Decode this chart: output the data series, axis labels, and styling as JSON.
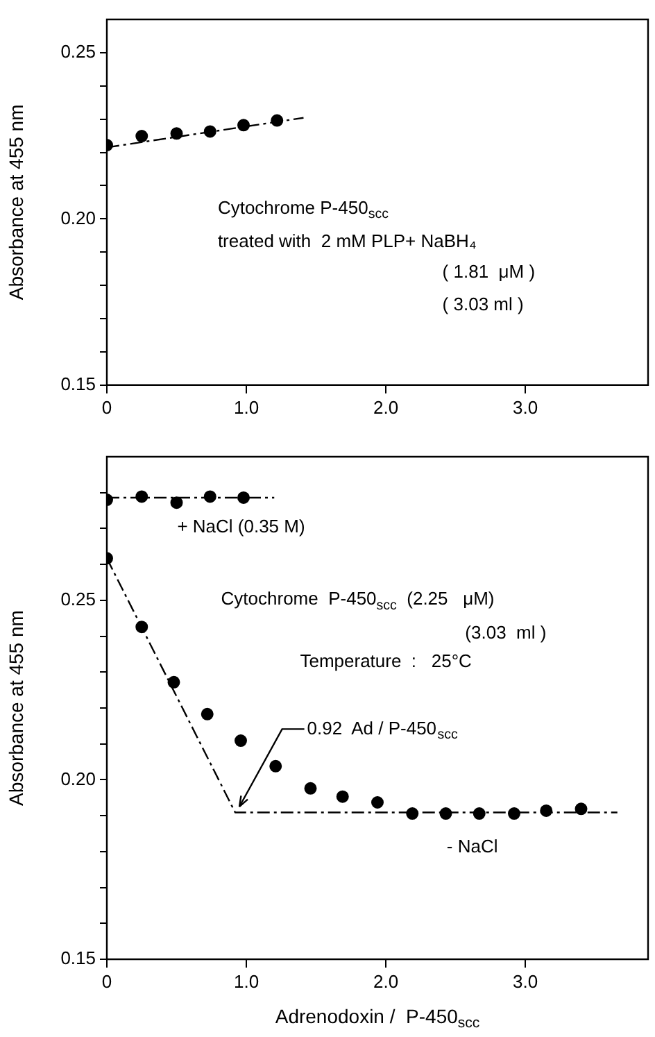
{
  "chart_data": [
    {
      "type": "scatter",
      "ylabel": "Absorbance at 455 nm",
      "xlim": [
        0,
        3.88
      ],
      "ylim": [
        0.15,
        0.26
      ],
      "xticks": [
        0,
        {
          "value": 1,
          "label": "1.0"
        },
        {
          "value": 2,
          "label": "2.0"
        },
        {
          "value": 3,
          "label": "3.0"
        }
      ],
      "yticks": [
        0.15,
        {
          "value": 0.16,
          "label": null
        },
        {
          "value": 0.17,
          "label": null
        },
        {
          "value": 0.18,
          "label": null
        },
        {
          "value": 0.19,
          "label": null
        },
        {
          "value": 0.2,
          "label": "0.20"
        },
        {
          "value": 0.21,
          "label": null
        },
        {
          "value": 0.22,
          "label": null
        },
        {
          "value": 0.23,
          "label": null
        },
        {
          "value": 0.24,
          "label": null
        },
        {
          "value": 0.25,
          "label": "0.25"
        }
      ],
      "annotations": [
        "Cytochrome P-450$_{scc}$",
        "treated with  2 mM PLP+ NaBH₄",
        "( 1.81  μM )",
        "( 3.03 ml )"
      ],
      "series": [
        {
          "type": "line",
          "color": "#000000",
          "marker": "none",
          "line_style": "dashed",
          "x": [
            0,
            1.41
          ],
          "values": [
            0.2215,
            0.2304
          ]
        },
        {
          "color": "#000000",
          "marker": "circle",
          "x": [
            0,
            0.25,
            0.5,
            0.74,
            0.98,
            1.22
          ],
          "values": [
            0.2222,
            0.2249,
            0.2257,
            0.2263,
            0.2282,
            0.2296
          ]
        }
      ]
    },
    {
      "type": "scatter",
      "ylabel": "Absorbance at 455 nm",
      "xlabel": "Adrenodoxin /  P-450$_{scc}$",
      "xlim": [
        0,
        3.88
      ],
      "ylim": [
        0.15,
        0.29
      ],
      "xticks": [
        0,
        {
          "value": 1,
          "label": "1.0"
        },
        {
          "value": 2,
          "label": "2.0"
        },
        {
          "value": 3,
          "label": "3.0"
        }
      ],
      "yticks": [
        0.15,
        {
          "value": 0.16,
          "label": null
        },
        {
          "value": 0.17,
          "label": null
        },
        {
          "value": 0.18,
          "label": null
        },
        {
          "value": 0.19,
          "label": null
        },
        {
          "value": 0.2,
          "label": "0.20"
        },
        {
          "value": 0.21,
          "label": null
        },
        {
          "value": 0.22,
          "label": null
        },
        {
          "value": 0.23,
          "label": null
        },
        {
          "value": 0.24,
          "label": null
        },
        {
          "value": 0.25,
          "label": "0.25"
        },
        {
          "value": 0.26,
          "label": null
        },
        {
          "value": 0.27,
          "label": null
        },
        {
          "value": 0.28,
          "label": null
        }
      ],
      "annotations": [
        "Cytochrome  P-450$_{scc}$  (2.25   μM)",
        "(3.03  ml )",
        "Temperature  :   25°C",
        {
          "text": "0.92  Ad / P-450$_{scc}$",
          "x": 0.95,
          "y": 0.1925
        }
      ],
      "series": [
        {
          "type": "line",
          "color": "#000000",
          "marker": "none",
          "line_style": "dashed",
          "x": [
            0,
            1.2
          ],
          "values": [
            0.2786,
            0.2786
          ]
        },
        {
          "type": "line",
          "color": "#000000",
          "marker": "none",
          "line_style": "dashed",
          "x": [
            0,
            0.92,
            3.66
          ],
          "values": [
            0.2617,
            0.1909,
            0.1909
          ]
        },
        {
          "name": "+ NaCl (0.35 M)",
          "color": "#000000",
          "marker": "circle",
          "x": [
            0,
            0.25,
            0.5,
            0.74,
            0.98
          ],
          "values": [
            0.278,
            0.2789,
            0.2772,
            0.2789,
            0.2786
          ]
        },
        {
          "name": "- NaCl",
          "color": "#000000",
          "marker": "circle",
          "x": [
            0,
            0.25,
            0.48,
            0.72,
            0.96,
            1.21,
            1.46,
            1.69,
            1.94,
            2.19,
            2.43,
            2.67,
            2.92,
            3.15,
            3.4
          ],
          "values": [
            0.2617,
            0.2426,
            0.2272,
            0.2183,
            0.2109,
            0.2038,
            0.1976,
            0.1953,
            0.1937,
            0.1906,
            0.1906,
            0.1906,
            0.1906,
            0.1914,
            0.1919
          ]
        }
      ]
    }
  ]
}
